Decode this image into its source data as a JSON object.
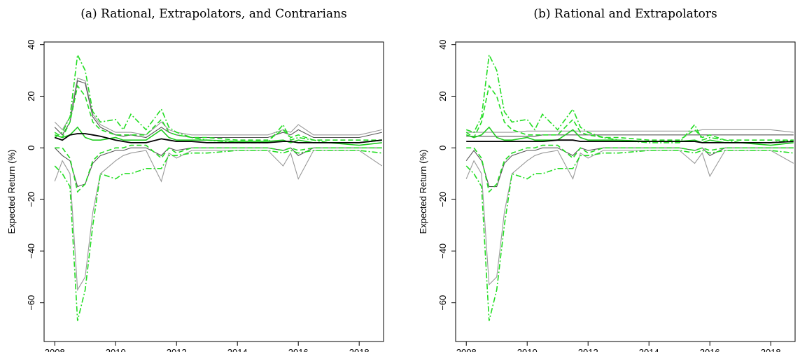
{
  "chart_data": [
    {
      "type": "line",
      "title": "(a) Rational, Extrapolators, and Contrarians",
      "y_label": "Expected Return (%)",
      "x": [
        2008,
        2008.25,
        2008.5,
        2008.75,
        2009,
        2009.25,
        2009.5,
        2010,
        2010.25,
        2010.5,
        2011,
        2011.5,
        2011.75,
        2012,
        2012.5,
        2013,
        2014,
        2015,
        2015.5,
        2015.75,
        2016,
        2016.5,
        2017,
        2018,
        2018.75
      ],
      "xlim": [
        2007.65,
        2018.8
      ],
      "xticks": [
        2008,
        2010,
        2012,
        2014,
        2016,
        2018
      ],
      "ylim": [
        -75,
        41
      ],
      "yticks": [
        {
          "value": -60,
          "label": "−60"
        },
        {
          "value": -40,
          "label": "−40"
        },
        {
          "value": -20,
          "label": "−20"
        },
        0,
        20,
        40
      ],
      "series": [
        {
          "color": "#999999",
          "dash": "solid",
          "values": [
            10,
            7,
            12,
            27,
            26,
            13,
            9,
            6,
            6,
            6,
            5,
            10,
            7,
            6,
            5,
            5,
            5,
            5,
            7,
            6,
            9,
            5,
            5,
            5,
            7
          ]
        },
        {
          "color": "#999999",
          "dash": "solid",
          "values": [
            -13,
            -5,
            -10,
            -55,
            -50,
            -25,
            -10,
            -5,
            -3,
            -2,
            -1,
            -13,
            -2,
            -4,
            -1,
            -1,
            -1,
            -1,
            -7,
            -2,
            -12,
            -1,
            -1,
            -1,
            -7
          ]
        },
        {
          "color": "#555555",
          "dash": "solid",
          "values": [
            8,
            5,
            10,
            26,
            25,
            12,
            8,
            5,
            4.5,
            5,
            4,
            8,
            6,
            5,
            4,
            4,
            4,
            4,
            6,
            5,
            7,
            4,
            4,
            4,
            6
          ]
        },
        {
          "color": "#555555",
          "dash": "solid",
          "values": [
            0,
            -3,
            -5,
            -15,
            -14,
            -6,
            -3,
            -1,
            -1,
            0,
            0,
            -3,
            0,
            -1,
            0,
            0,
            0,
            0,
            -1,
            0,
            -3,
            0,
            0,
            0,
            0
          ]
        },
        {
          "color": "#22dd22",
          "dash": "dashdot",
          "values": [
            4,
            6,
            12,
            36,
            30,
            14,
            10,
            11,
            7,
            13,
            7,
            15,
            8,
            6,
            4,
            3,
            2,
            2,
            9,
            3,
            4,
            3,
            2,
            2,
            3
          ]
        },
        {
          "color": "#22dd22",
          "dash": "dashdot",
          "values": [
            -7,
            -10,
            -15,
            -67,
            -55,
            -30,
            -10,
            -12,
            -10,
            -10,
            -8,
            -8,
            -3,
            -3,
            -2,
            -2,
            -1,
            -1,
            -2,
            -1,
            -2,
            -1,
            -1,
            -1,
            -2
          ]
        },
        {
          "color": "#22dd22",
          "dash": "dashed",
          "values": [
            6,
            4,
            10,
            24,
            20,
            10,
            7,
            5,
            5,
            5,
            5,
            11,
            6,
            5,
            4,
            4,
            3,
            3,
            7,
            4,
            5,
            3,
            3,
            3,
            3
          ]
        },
        {
          "color": "#22dd22",
          "dash": "dashed",
          "values": [
            0,
            0,
            -4,
            -17,
            -14,
            -5,
            -2,
            0,
            0,
            1,
            1,
            -4,
            0,
            -2,
            0,
            0,
            0,
            0,
            -1,
            0,
            -1,
            0,
            0,
            0,
            0
          ]
        },
        {
          "color": "#22cc22",
          "dash": "solid",
          "values": [
            5,
            4,
            5,
            8,
            4,
            3,
            3,
            4,
            3,
            3,
            3,
            7,
            4,
            3,
            3,
            3,
            2.5,
            2.5,
            3,
            2,
            3,
            2,
            2,
            1,
            2
          ]
        },
        {
          "color": "#000000",
          "dash": "solid",
          "values": [
            4,
            3,
            5,
            5.5,
            5.5,
            5,
            4.5,
            3,
            2.5,
            2,
            2,
            3.5,
            3,
            2.5,
            2.5,
            2,
            2,
            2,
            2.5,
            2.5,
            2,
            2,
            2,
            2,
            3
          ]
        }
      ]
    },
    {
      "type": "line",
      "title": "(b) Rational and Extrapolators",
      "y_label": "Expected Return (%)",
      "x": [
        2008,
        2008.25,
        2008.5,
        2008.75,
        2009,
        2009.25,
        2009.5,
        2010,
        2010.25,
        2010.5,
        2011,
        2011.5,
        2011.75,
        2012,
        2012.5,
        2013,
        2014,
        2015,
        2015.5,
        2015.75,
        2016,
        2016.5,
        2017,
        2018,
        2018.75
      ],
      "xlim": [
        2007.65,
        2018.8
      ],
      "xticks": [
        2008,
        2010,
        2012,
        2014,
        2016,
        2018
      ],
      "ylim": [
        -75,
        41
      ],
      "yticks": [
        {
          "value": -60,
          "label": "−60"
        },
        {
          "value": -40,
          "label": "−40"
        },
        {
          "value": -20,
          "label": "−20"
        },
        0,
        20,
        40
      ],
      "series": [
        {
          "color": "#999999",
          "dash": "solid",
          "values": [
            6,
            6,
            6,
            6,
            6,
            6,
            6,
            6.5,
            6.5,
            6.5,
            6.5,
            6.5,
            6.5,
            6.5,
            6.5,
            6.5,
            6.5,
            6.5,
            6.5,
            7,
            7,
            7,
            7,
            7,
            6
          ]
        },
        {
          "color": "#999999",
          "dash": "solid",
          "values": [
            -12,
            -5,
            -10,
            -53,
            -50,
            -25,
            -10,
            -5,
            -3,
            -2,
            -1,
            -12,
            -2,
            -4,
            -1,
            -1,
            -1,
            -1,
            -6,
            -2,
            -11,
            -1,
            -1,
            -1,
            -6
          ]
        },
        {
          "color": "#555555",
          "dash": "solid",
          "values": [
            4.5,
            4.5,
            4.5,
            4.5,
            4.5,
            4.5,
            4.5,
            4.5,
            4.5,
            5,
            5,
            5,
            5,
            5,
            5,
            5,
            5,
            5,
            5,
            5,
            5,
            5,
            5,
            5,
            5
          ]
        },
        {
          "color": "#555555",
          "dash": "solid",
          "values": [
            -5,
            -1,
            -5,
            -15,
            -15,
            -6,
            -3,
            -1,
            -1,
            0,
            0,
            -3,
            0,
            -1,
            0,
            0,
            0,
            0,
            -1,
            0,
            -3,
            0,
            0,
            0,
            0
          ]
        },
        {
          "color": "#22dd22",
          "dash": "dashdot",
          "values": [
            7,
            6,
            12,
            36,
            30,
            14,
            10,
            11,
            7,
            13,
            7,
            15,
            8,
            6,
            4,
            3,
            2,
            2,
            9,
            3,
            4,
            3,
            2,
            2,
            3
          ]
        },
        {
          "color": "#22dd22",
          "dash": "dashdot",
          "values": [
            -7,
            -10,
            -15,
            -67,
            -55,
            -30,
            -10,
            -12,
            -10,
            -10,
            -8,
            -8,
            -3,
            -3,
            -2,
            -2,
            -1,
            -1,
            -2,
            -1,
            -2,
            -1,
            -1,
            -1,
            -2
          ]
        },
        {
          "color": "#22dd22",
          "dash": "dashed",
          "values": [
            6,
            4,
            10,
            24,
            20,
            10,
            7,
            5,
            5,
            5,
            5,
            11,
            6,
            5,
            4,
            4,
            3,
            3,
            7,
            4,
            5,
            3,
            3,
            3,
            3
          ]
        },
        {
          "color": "#22dd22",
          "dash": "dashed",
          "values": [
            0,
            0,
            -4,
            -17,
            -14,
            -5,
            -2,
            0,
            0,
            1,
            1,
            -4,
            0,
            -2,
            0,
            0,
            0,
            0,
            -1,
            0,
            -1,
            0,
            0,
            0,
            0
          ]
        },
        {
          "color": "#22cc22",
          "dash": "solid",
          "values": [
            5,
            4,
            5,
            8,
            4,
            3,
            3,
            4,
            3,
            3,
            3,
            7,
            4,
            3,
            3,
            3,
            2.5,
            2.5,
            3,
            2,
            3,
            2,
            2,
            1,
            2
          ]
        },
        {
          "color": "#000000",
          "dash": "solid",
          "values": [
            2.5,
            2.5,
            2.5,
            2.5,
            2.5,
            2.5,
            2.5,
            2.5,
            2.5,
            2.5,
            3,
            3,
            2.5,
            2.5,
            2.5,
            2.5,
            2.5,
            2.5,
            2.5,
            2,
            2,
            2,
            2,
            2,
            2.5
          ]
        }
      ]
    }
  ]
}
